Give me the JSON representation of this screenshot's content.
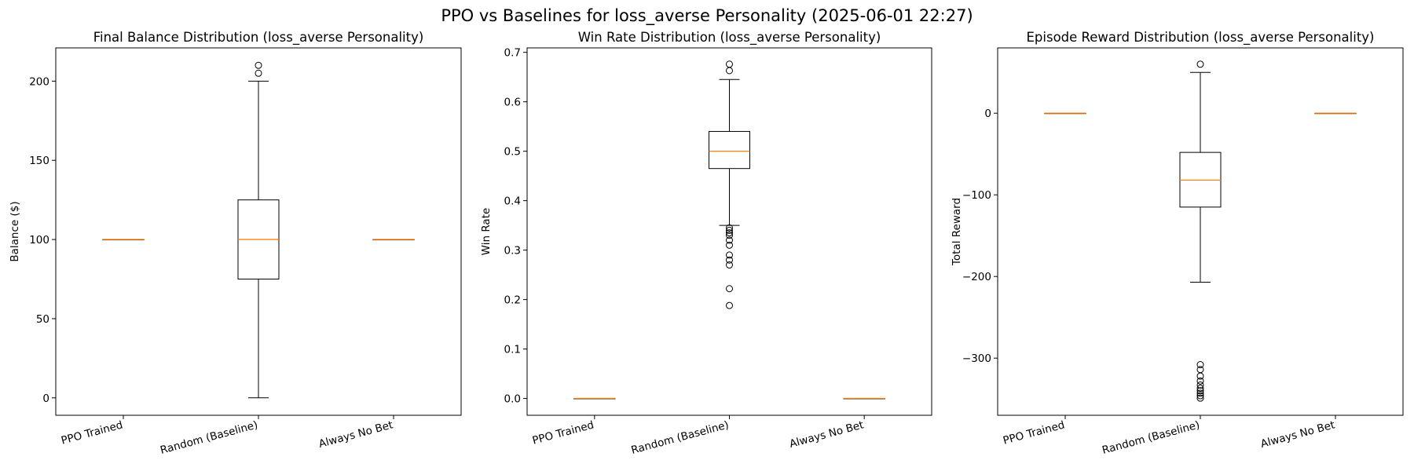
{
  "figure_title": "PPO vs Baselines for loss_averse Personality (2025-06-01 22:27)",
  "colors": {
    "box": "#000000",
    "median": "#ff7f0e",
    "background": "#ffffff"
  },
  "chart_data": [
    {
      "type": "box",
      "title": "Final Balance Distribution (loss_averse Personality)",
      "xlabel": "",
      "ylabel": "Balance ($)",
      "ylim": [
        -11,
        221
      ],
      "yticks": [
        0,
        50,
        100,
        150,
        200
      ],
      "yticklabels": [
        "0",
        "50",
        "100",
        "150",
        "200"
      ],
      "categories": [
        "PPO Trained",
        "Random (Baseline)",
        "Always No Bet"
      ],
      "boxes": [
        {
          "whislo": 100,
          "q1": 100,
          "med": 100,
          "q3": 100,
          "whishi": 100,
          "fliers": []
        },
        {
          "whislo": 0,
          "q1": 75,
          "med": 100,
          "q3": 125,
          "whishi": 200,
          "fliers": [
            205,
            210
          ]
        },
        {
          "whislo": 100,
          "q1": 100,
          "med": 100,
          "q3": 100,
          "whishi": 100,
          "fliers": []
        }
      ]
    },
    {
      "type": "box",
      "title": "Win Rate Distribution (loss_averse Personality)",
      "xlabel": "",
      "ylabel": "Win Rate",
      "ylim": [
        -0.034,
        0.709
      ],
      "yticks": [
        0.0,
        0.1,
        0.2,
        0.3,
        0.4,
        0.5,
        0.6,
        0.7
      ],
      "yticklabels": [
        "0.0",
        "0.1",
        "0.2",
        "0.3",
        "0.4",
        "0.5",
        "0.6",
        "0.7"
      ],
      "categories": [
        "PPO Trained",
        "Random (Baseline)",
        "Always No Bet"
      ],
      "boxes": [
        {
          "whislo": 0,
          "q1": 0,
          "med": 0,
          "q3": 0,
          "whishi": 0,
          "fliers": []
        },
        {
          "whislo": 0.35,
          "q1": 0.465,
          "med": 0.5,
          "q3": 0.54,
          "whishi": 0.645,
          "fliers": [
            0.345,
            0.34,
            0.335,
            0.33,
            0.32,
            0.31,
            0.29,
            0.28,
            0.27,
            0.222,
            0.188,
            0.663,
            0.676
          ]
        },
        {
          "whislo": 0,
          "q1": 0,
          "med": 0,
          "q3": 0,
          "whishi": 0,
          "fliers": []
        }
      ]
    },
    {
      "type": "box",
      "title": "Episode Reward Distribution (loss_averse Personality)",
      "xlabel": "",
      "ylabel": "Total Reward",
      "ylim": [
        -370,
        80
      ],
      "yticks": [
        -300,
        -200,
        -100,
        0
      ],
      "yticklabels": [
        "−300",
        "−200",
        "−100",
        "0"
      ],
      "categories": [
        "PPO Trained",
        "Random (Baseline)",
        "Always No Bet"
      ],
      "boxes": [
        {
          "whislo": 0,
          "q1": 0,
          "med": 0,
          "q3": 0,
          "whishi": 0,
          "fliers": []
        },
        {
          "whislo": -207,
          "q1": -115,
          "med": -82,
          "q3": -48,
          "whishi": 50,
          "fliers": [
            60,
            -308,
            -314,
            -322,
            -328,
            -333,
            -337,
            -340,
            -343,
            -346,
            -349
          ]
        },
        {
          "whislo": 0,
          "q1": 0,
          "med": 0,
          "q3": 0,
          "whishi": 0,
          "fliers": []
        }
      ]
    }
  ]
}
